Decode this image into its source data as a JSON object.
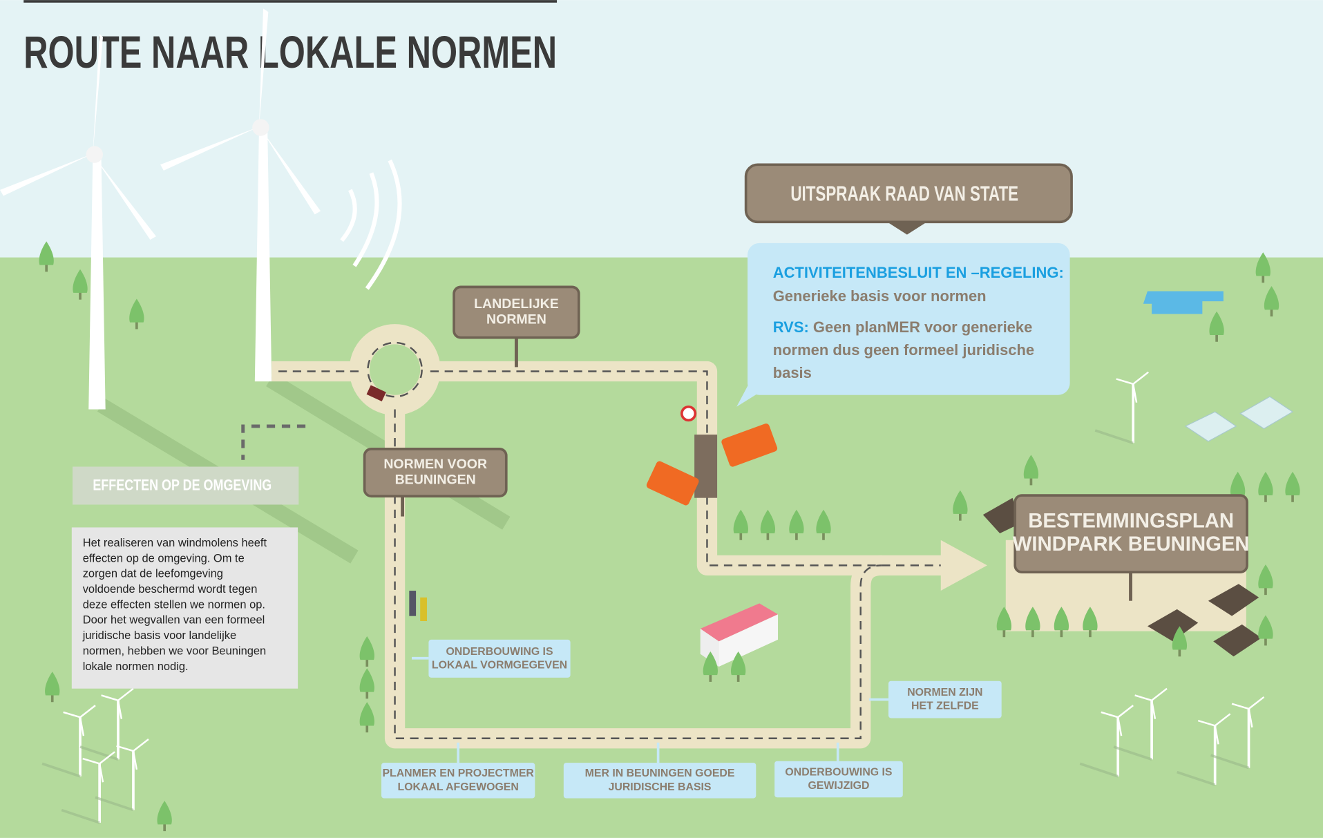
{
  "title": "ROUTE NAAR LOKALE NORMEN",
  "ruling": {
    "title": "UITSPRAAK RAAD VAN STATE",
    "items": [
      {
        "term": "ACTIVITEITENBESLUIT EN –REGELING:",
        "lines": [
          "Generieke basis voor normen"
        ]
      },
      {
        "term": "RVS:",
        "lines": [
          "Geen planMER voor generieke",
          "normen dus geen formeel juridische",
          "basis"
        ]
      }
    ]
  },
  "effects": {
    "heading": "EFFECTEN OP DE OMGEVING",
    "lines": [
      "Het realiseren van windmolens heeft",
      "effecten op de omgeving. Om te",
      "zorgen dat de leefomgeving",
      "voldoende beschermd wordt tegen",
      "deze effecten stellen we normen op.",
      "Door het wegvallen van een formeel",
      "juridische basis voor landelijke",
      "normen, hebben we voor Beuningen",
      "lokale normen nodig."
    ]
  },
  "signs": [
    {
      "lines": [
        "LANDELIJKE",
        "NORMEN"
      ]
    },
    {
      "lines": [
        "NORMEN VOOR",
        "BEUNINGEN"
      ]
    },
    {
      "lines": [
        "BESTEMMINGSPLAN",
        "WINDPARK BEUNINGEN"
      ]
    }
  ],
  "notes": [
    {
      "lines": [
        "ONDERBOUWING IS",
        "LOKAAL VORMGEGEVEN"
      ]
    },
    {
      "lines": [
        "PLANMER EN PROJECTMER",
        "LOKAAL AFGEWOGEN"
      ]
    },
    {
      "lines": [
        "MER IN BEUNINGEN GOEDE",
        "JURIDISCHE BASIS"
      ]
    },
    {
      "lines": [
        "ONDERBOUWING IS",
        "GEWIJZIGD"
      ]
    },
    {
      "lines": [
        "NORMEN ZIJN",
        "HET ZELFDE"
      ]
    }
  ]
}
